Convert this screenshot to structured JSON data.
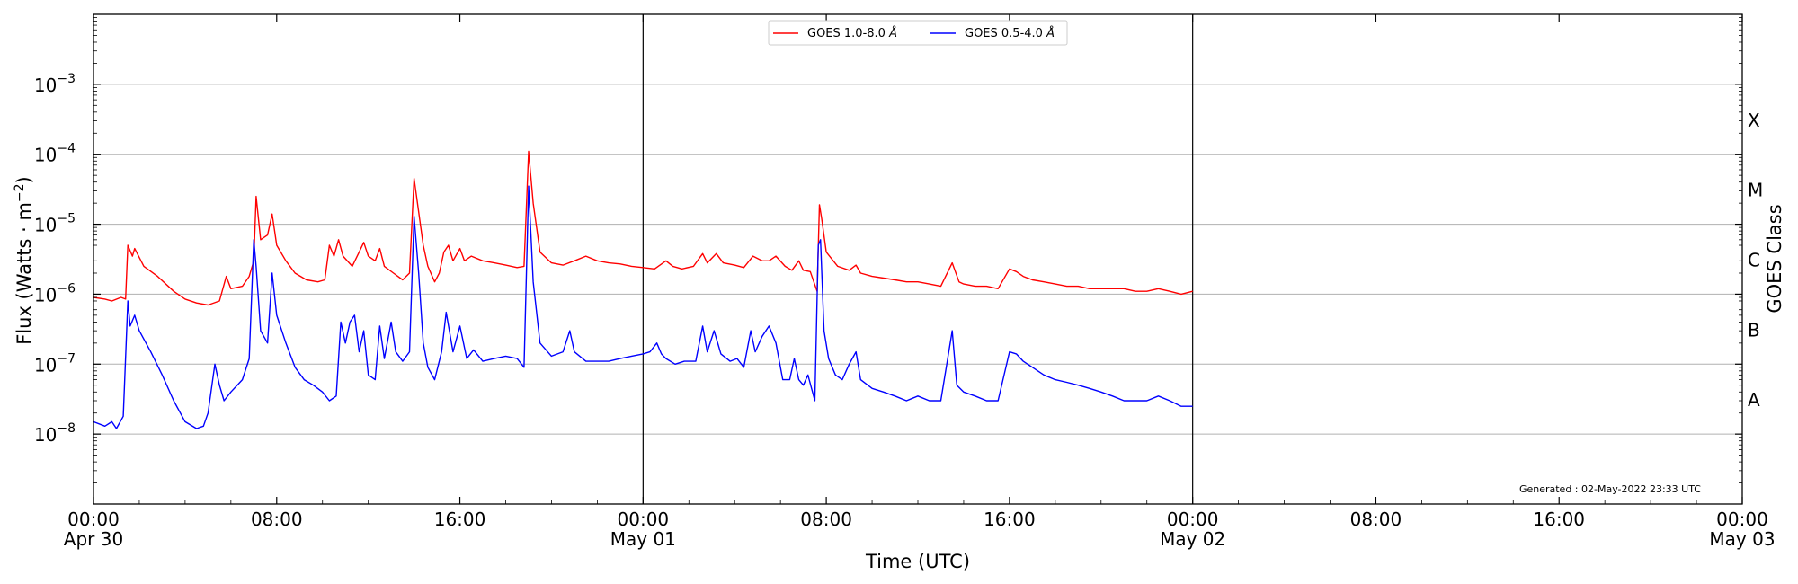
{
  "chart_data": {
    "type": "line",
    "xlabel": "Time (UTC)",
    "ylabel": "Flux (Watts · m",
    "ylabel_sup": "−2",
    "ylabel_close": ")",
    "right_label": "GOES Class",
    "y_scale": "log",
    "ylim": [
      1e-09,
      0.01
    ],
    "x_unit": "hours since 2022-04-30 00:00 UTC",
    "xlim": [
      0,
      72
    ],
    "grid": "horizontal at decades",
    "legend_placement": "top-center",
    "footnote": "Generated : 02-May-2022 23:33 UTC",
    "x_ticks": [
      {
        "x": 0,
        "line1": "00:00",
        "line2": "Apr 30"
      },
      {
        "x": 8,
        "line1": "08:00",
        "line2": ""
      },
      {
        "x": 16,
        "line1": "16:00",
        "line2": ""
      },
      {
        "x": 24,
        "line1": "00:00",
        "line2": "May 01"
      },
      {
        "x": 32,
        "line1": "08:00",
        "line2": ""
      },
      {
        "x": 40,
        "line1": "16:00",
        "line2": ""
      },
      {
        "x": 48,
        "line1": "00:00",
        "line2": "May 02"
      },
      {
        "x": 56,
        "line1": "08:00",
        "line2": ""
      },
      {
        "x": 64,
        "line1": "16:00",
        "line2": ""
      },
      {
        "x": 72,
        "line1": "00:00",
        "line2": "May 03"
      }
    ],
    "y_ticks": [
      {
        "exp": -8,
        "label_base": "10",
        "label_exp": "−8"
      },
      {
        "exp": -7,
        "label_base": "10",
        "label_exp": "−7"
      },
      {
        "exp": -6,
        "label_base": "10",
        "label_exp": "−6"
      },
      {
        "exp": -5,
        "label_base": "10",
        "label_exp": "−5"
      },
      {
        "exp": -4,
        "label_base": "10",
        "label_exp": "−4"
      },
      {
        "exp": -3,
        "label_base": "10",
        "label_exp": "−3"
      }
    ],
    "day_markers": [
      24,
      48
    ],
    "goes_classes": [
      {
        "label": "A",
        "exp": -7.5
      },
      {
        "label": "B",
        "exp": -6.5
      },
      {
        "label": "C",
        "exp": -5.5
      },
      {
        "label": "M",
        "exp": -4.5
      },
      {
        "label": "X",
        "exp": -3.5
      }
    ],
    "series": [
      {
        "name": "GOES 1.0-8.0 ",
        "name_unit": "Å",
        "color": "#ff0000",
        "points": [
          [
            0,
            9e-07
          ],
          [
            0.5,
            8.5e-07
          ],
          [
            0.8,
            8e-07
          ],
          [
            1.2,
            9e-07
          ],
          [
            1.4,
            8.5e-07
          ],
          [
            1.5,
            5e-06
          ],
          [
            1.7,
            3.5e-06
          ],
          [
            1.8,
            4.5e-06
          ],
          [
            2.2,
            2.5e-06
          ],
          [
            2.8,
            1.8e-06
          ],
          [
            3.5,
            1.1e-06
          ],
          [
            4,
            8.5e-07
          ],
          [
            4.5,
            7.5e-07
          ],
          [
            5,
            7e-07
          ],
          [
            5.5,
            8e-07
          ],
          [
            5.8,
            1.8e-06
          ],
          [
            6,
            1.2e-06
          ],
          [
            6.5,
            1.3e-06
          ],
          [
            6.8,
            1.8e-06
          ],
          [
            7,
            3e-06
          ],
          [
            7.1,
            2.5e-05
          ],
          [
            7.3,
            6e-06
          ],
          [
            7.6,
            7e-06
          ],
          [
            7.8,
            1.4e-05
          ],
          [
            8,
            5e-06
          ],
          [
            8.4,
            3e-06
          ],
          [
            8.8,
            2e-06
          ],
          [
            9.3,
            1.6e-06
          ],
          [
            9.8,
            1.5e-06
          ],
          [
            10.1,
            1.6e-06
          ],
          [
            10.3,
            5e-06
          ],
          [
            10.5,
            3.5e-06
          ],
          [
            10.7,
            6e-06
          ],
          [
            10.9,
            3.5e-06
          ],
          [
            11.3,
            2.5e-06
          ],
          [
            11.6,
            4e-06
          ],
          [
            11.8,
            5.5e-06
          ],
          [
            12,
            3.5e-06
          ],
          [
            12.3,
            3e-06
          ],
          [
            12.5,
            4.5e-06
          ],
          [
            12.7,
            2.5e-06
          ],
          [
            13.1,
            2e-06
          ],
          [
            13.5,
            1.6e-06
          ],
          [
            13.8,
            2e-06
          ],
          [
            14.0,
            4.5e-05
          ],
          [
            14.2,
            1.5e-05
          ],
          [
            14.4,
            5e-06
          ],
          [
            14.6,
            2.5e-06
          ],
          [
            14.9,
            1.5e-06
          ],
          [
            15.1,
            2e-06
          ],
          [
            15.3,
            4e-06
          ],
          [
            15.5,
            5e-06
          ],
          [
            15.7,
            3e-06
          ],
          [
            16,
            4.5e-06
          ],
          [
            16.2,
            3e-06
          ],
          [
            16.5,
            3.5e-06
          ],
          [
            17,
            3e-06
          ],
          [
            17.5,
            2.8e-06
          ],
          [
            18,
            2.6e-06
          ],
          [
            18.5,
            2.4e-06
          ],
          [
            18.8,
            2.5e-06
          ],
          [
            19.0,
            0.00011
          ],
          [
            19.2,
            2e-05
          ],
          [
            19.5,
            4e-06
          ],
          [
            20,
            2.8e-06
          ],
          [
            20.5,
            2.6e-06
          ],
          [
            21,
            3e-06
          ],
          [
            21.5,
            3.5e-06
          ],
          [
            22,
            3e-06
          ],
          [
            22.5,
            2.8e-06
          ],
          [
            23,
            2.7e-06
          ],
          [
            23.5,
            2.5e-06
          ],
          [
            24,
            2.4e-06
          ],
          [
            24.5,
            2.3e-06
          ],
          [
            25,
            3e-06
          ],
          [
            25.3,
            2.5e-06
          ],
          [
            25.7,
            2.3e-06
          ],
          [
            26.2,
            2.5e-06
          ],
          [
            26.6,
            3.8e-06
          ],
          [
            26.8,
            2.8e-06
          ],
          [
            27.2,
            3.8e-06
          ],
          [
            27.5,
            2.8e-06
          ],
          [
            28,
            2.6e-06
          ],
          [
            28.4,
            2.4e-06
          ],
          [
            28.8,
            3.5e-06
          ],
          [
            29.2,
            3e-06
          ],
          [
            29.5,
            3e-06
          ],
          [
            29.8,
            3.5e-06
          ],
          [
            30.2,
            2.5e-06
          ],
          [
            30.5,
            2.2e-06
          ],
          [
            30.8,
            3e-06
          ],
          [
            31,
            2.2e-06
          ],
          [
            31.3,
            2.1e-06
          ],
          [
            31.6,
            1.1e-06
          ],
          [
            31.7,
            1.9e-05
          ],
          [
            31.8,
            1.2e-05
          ],
          [
            32,
            4e-06
          ],
          [
            32.5,
            2.5e-06
          ],
          [
            33,
            2.2e-06
          ],
          [
            33.3,
            2.6e-06
          ],
          [
            33.5,
            2e-06
          ],
          [
            34,
            1.8e-06
          ],
          [
            34.5,
            1.7e-06
          ],
          [
            35,
            1.6e-06
          ],
          [
            35.5,
            1.5e-06
          ],
          [
            36,
            1.5e-06
          ],
          [
            36.5,
            1.4e-06
          ],
          [
            37,
            1.3e-06
          ],
          [
            37.5,
            2.8e-06
          ],
          [
            37.8,
            1.5e-06
          ],
          [
            38,
            1.4e-06
          ],
          [
            38.5,
            1.3e-06
          ],
          [
            39,
            1.3e-06
          ],
          [
            39.5,
            1.2e-06
          ],
          [
            40,
            2.3e-06
          ],
          [
            40.3,
            2.1e-06
          ],
          [
            40.6,
            1.8e-06
          ],
          [
            41,
            1.6e-06
          ],
          [
            41.5,
            1.5e-06
          ],
          [
            42,
            1.4e-06
          ],
          [
            42.5,
            1.3e-06
          ],
          [
            43,
            1.3e-06
          ],
          [
            43.5,
            1.2e-06
          ],
          [
            44,
            1.2e-06
          ],
          [
            44.5,
            1.2e-06
          ],
          [
            45,
            1.2e-06
          ],
          [
            45.5,
            1.1e-06
          ],
          [
            46,
            1.1e-06
          ],
          [
            46.5,
            1.2e-06
          ],
          [
            47,
            1.1e-06
          ],
          [
            47.5,
            1e-06
          ],
          [
            48,
            1.1e-06
          ]
        ]
      },
      {
        "name": "GOES 0.5-4.0 ",
        "name_unit": "Å",
        "color": "#0000ff",
        "points": [
          [
            0,
            1.5e-08
          ],
          [
            0.5,
            1.3e-08
          ],
          [
            0.8,
            1.5e-08
          ],
          [
            1.0,
            1.2e-08
          ],
          [
            1.3,
            1.8e-08
          ],
          [
            1.5,
            8e-07
          ],
          [
            1.6,
            3.5e-07
          ],
          [
            1.8,
            5e-07
          ],
          [
            2.0,
            3e-07
          ],
          [
            2.5,
            1.5e-07
          ],
          [
            3,
            7e-08
          ],
          [
            3.5,
            3e-08
          ],
          [
            4,
            1.5e-08
          ],
          [
            4.5,
            1.2e-08
          ],
          [
            4.8,
            1.3e-08
          ],
          [
            5,
            2e-08
          ],
          [
            5.3,
            1e-07
          ],
          [
            5.5,
            5e-08
          ],
          [
            5.7,
            3e-08
          ],
          [
            6,
            4e-08
          ],
          [
            6.5,
            6e-08
          ],
          [
            6.8,
            1.2e-07
          ],
          [
            7.0,
            6e-06
          ],
          [
            7.1,
            2.5e-06
          ],
          [
            7.3,
            3e-07
          ],
          [
            7.6,
            2e-07
          ],
          [
            7.8,
            2e-06
          ],
          [
            8,
            5e-07
          ],
          [
            8.4,
            2e-07
          ],
          [
            8.8,
            9e-08
          ],
          [
            9.2,
            6e-08
          ],
          [
            9.6,
            5e-08
          ],
          [
            10,
            4e-08
          ],
          [
            10.3,
            3e-08
          ],
          [
            10.6,
            3.5e-08
          ],
          [
            10.8,
            4e-07
          ],
          [
            11,
            2e-07
          ],
          [
            11.2,
            4e-07
          ],
          [
            11.4,
            5e-07
          ],
          [
            11.6,
            1.5e-07
          ],
          [
            11.8,
            3e-07
          ],
          [
            12,
            7e-08
          ],
          [
            12.3,
            6e-08
          ],
          [
            12.5,
            3.5e-07
          ],
          [
            12.7,
            1.2e-07
          ],
          [
            13,
            4e-07
          ],
          [
            13.2,
            1.5e-07
          ],
          [
            13.5,
            1.1e-07
          ],
          [
            13.8,
            1.5e-07
          ],
          [
            14.0,
            1.3e-05
          ],
          [
            14.2,
            2e-06
          ],
          [
            14.4,
            2e-07
          ],
          [
            14.6,
            9e-08
          ],
          [
            14.9,
            6e-08
          ],
          [
            15.2,
            1.5e-07
          ],
          [
            15.4,
            5.5e-07
          ],
          [
            15.7,
            1.5e-07
          ],
          [
            16,
            3.5e-07
          ],
          [
            16.3,
            1.2e-07
          ],
          [
            16.6,
            1.6e-07
          ],
          [
            17,
            1.1e-07
          ],
          [
            17.5,
            1.2e-07
          ],
          [
            18,
            1.3e-07
          ],
          [
            18.5,
            1.2e-07
          ],
          [
            18.8,
            9e-08
          ],
          [
            19.0,
            3.5e-05
          ],
          [
            19.2,
            1.5e-06
          ],
          [
            19.5,
            2e-07
          ],
          [
            20,
            1.3e-07
          ],
          [
            20.5,
            1.5e-07
          ],
          [
            20.8,
            3e-07
          ],
          [
            21,
            1.5e-07
          ],
          [
            21.5,
            1.1e-07
          ],
          [
            22,
            1.1e-07
          ],
          [
            22.5,
            1.1e-07
          ],
          [
            23,
            1.2e-07
          ],
          [
            23.5,
            1.3e-07
          ],
          [
            24,
            1.4e-07
          ],
          [
            24.3,
            1.5e-07
          ],
          [
            24.6,
            2e-07
          ],
          [
            24.8,
            1.4e-07
          ],
          [
            25,
            1.2e-07
          ],
          [
            25.4,
            1e-07
          ],
          [
            25.8,
            1.1e-07
          ],
          [
            26.3,
            1.1e-07
          ],
          [
            26.6,
            3.5e-07
          ],
          [
            26.8,
            1.5e-07
          ],
          [
            27.1,
            3e-07
          ],
          [
            27.4,
            1.4e-07
          ],
          [
            27.8,
            1.1e-07
          ],
          [
            28.1,
            1.2e-07
          ],
          [
            28.4,
            9e-08
          ],
          [
            28.7,
            3e-07
          ],
          [
            28.9,
            1.5e-07
          ],
          [
            29.2,
            2.5e-07
          ],
          [
            29.5,
            3.5e-07
          ],
          [
            29.8,
            2e-07
          ],
          [
            30.1,
            6e-08
          ],
          [
            30.4,
            6e-08
          ],
          [
            30.6,
            1.2e-07
          ],
          [
            30.8,
            6e-08
          ],
          [
            31.0,
            5e-08
          ],
          [
            31.2,
            7e-08
          ],
          [
            31.5,
            3e-08
          ],
          [
            31.65,
            5e-06
          ],
          [
            31.75,
            6e-06
          ],
          [
            31.9,
            3e-07
          ],
          [
            32.1,
            1.2e-07
          ],
          [
            32.4,
            7e-08
          ],
          [
            32.7,
            6e-08
          ],
          [
            33.0,
            1e-07
          ],
          [
            33.3,
            1.5e-07
          ],
          [
            33.5,
            6e-08
          ],
          [
            34,
            4.5e-08
          ],
          [
            34.5,
            4e-08
          ],
          [
            35,
            3.5e-08
          ],
          [
            35.5,
            3e-08
          ],
          [
            36,
            3.5e-08
          ],
          [
            36.5,
            3e-08
          ],
          [
            37,
            3e-08
          ],
          [
            37.5,
            3e-07
          ],
          [
            37.7,
            5e-08
          ],
          [
            38,
            4e-08
          ],
          [
            38.5,
            3.5e-08
          ],
          [
            39,
            3e-08
          ],
          [
            39.5,
            3e-08
          ],
          [
            40,
            1.5e-07
          ],
          [
            40.3,
            1.4e-07
          ],
          [
            40.6,
            1.1e-07
          ],
          [
            41,
            9e-08
          ],
          [
            41.5,
            7e-08
          ],
          [
            42,
            6e-08
          ],
          [
            42.5,
            5.5e-08
          ],
          [
            43,
            5e-08
          ],
          [
            43.5,
            4.5e-08
          ],
          [
            44,
            4e-08
          ],
          [
            44.5,
            3.5e-08
          ],
          [
            45,
            3e-08
          ],
          [
            45.5,
            3e-08
          ],
          [
            46,
            3e-08
          ],
          [
            46.5,
            3.5e-08
          ],
          [
            47,
            3e-08
          ],
          [
            47.5,
            2.5e-08
          ],
          [
            48,
            2.5e-08
          ]
        ]
      }
    ]
  }
}
